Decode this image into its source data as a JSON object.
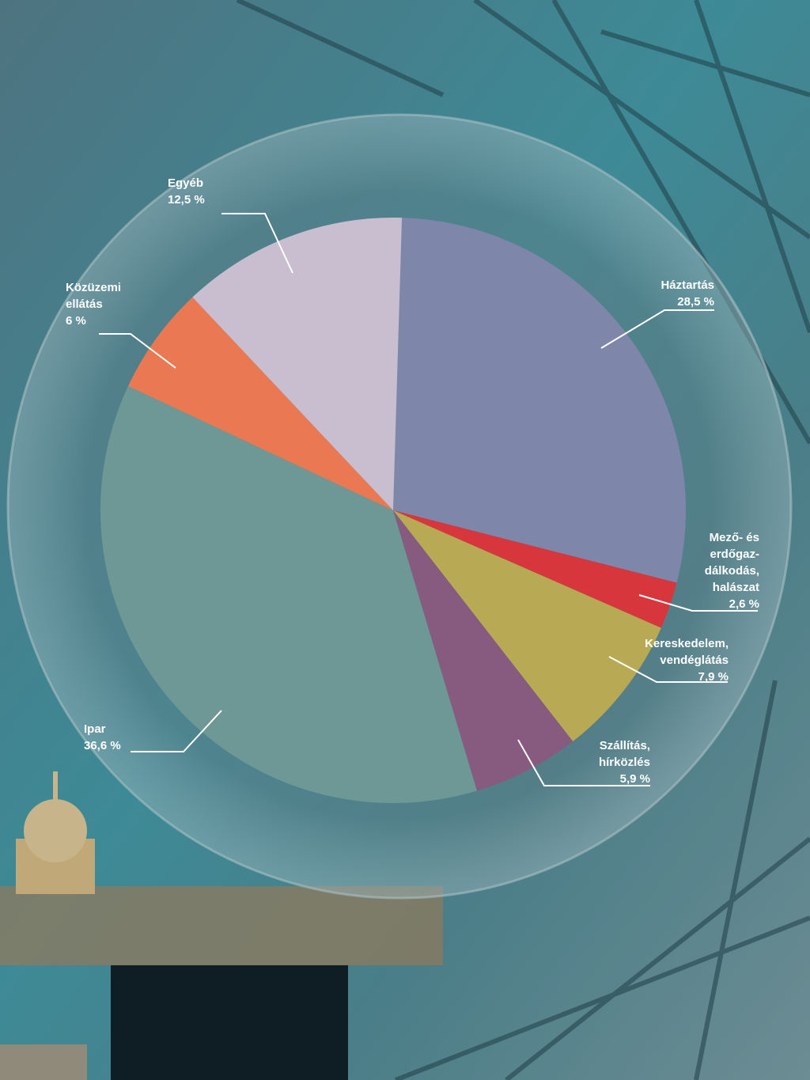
{
  "chart_data": {
    "type": "pie",
    "categories": [
      "Háztartás",
      "Mező- és\nerdőgaz-\ndálkodás,\nhalászat",
      "Kereskedelem,\nvendéglátás",
      "Szállítás,\nhírközlés",
      "Ipar",
      "Közüzemi\nellátás",
      "Egyéb"
    ],
    "values": [
      28.5,
      2.6,
      7.9,
      5.9,
      36.6,
      6,
      12.5
    ],
    "value_labels": [
      "28,5 %",
      "2,6 %",
      "7,9 %",
      "5,9 %",
      "36,6 %",
      "6 %",
      "12,5 %"
    ],
    "colors": [
      "#7e87a9",
      "#d8363d",
      "#b8aa55",
      "#875a80",
      "#6d9896",
      "#ea7953",
      "#c9bdd0"
    ]
  }
}
